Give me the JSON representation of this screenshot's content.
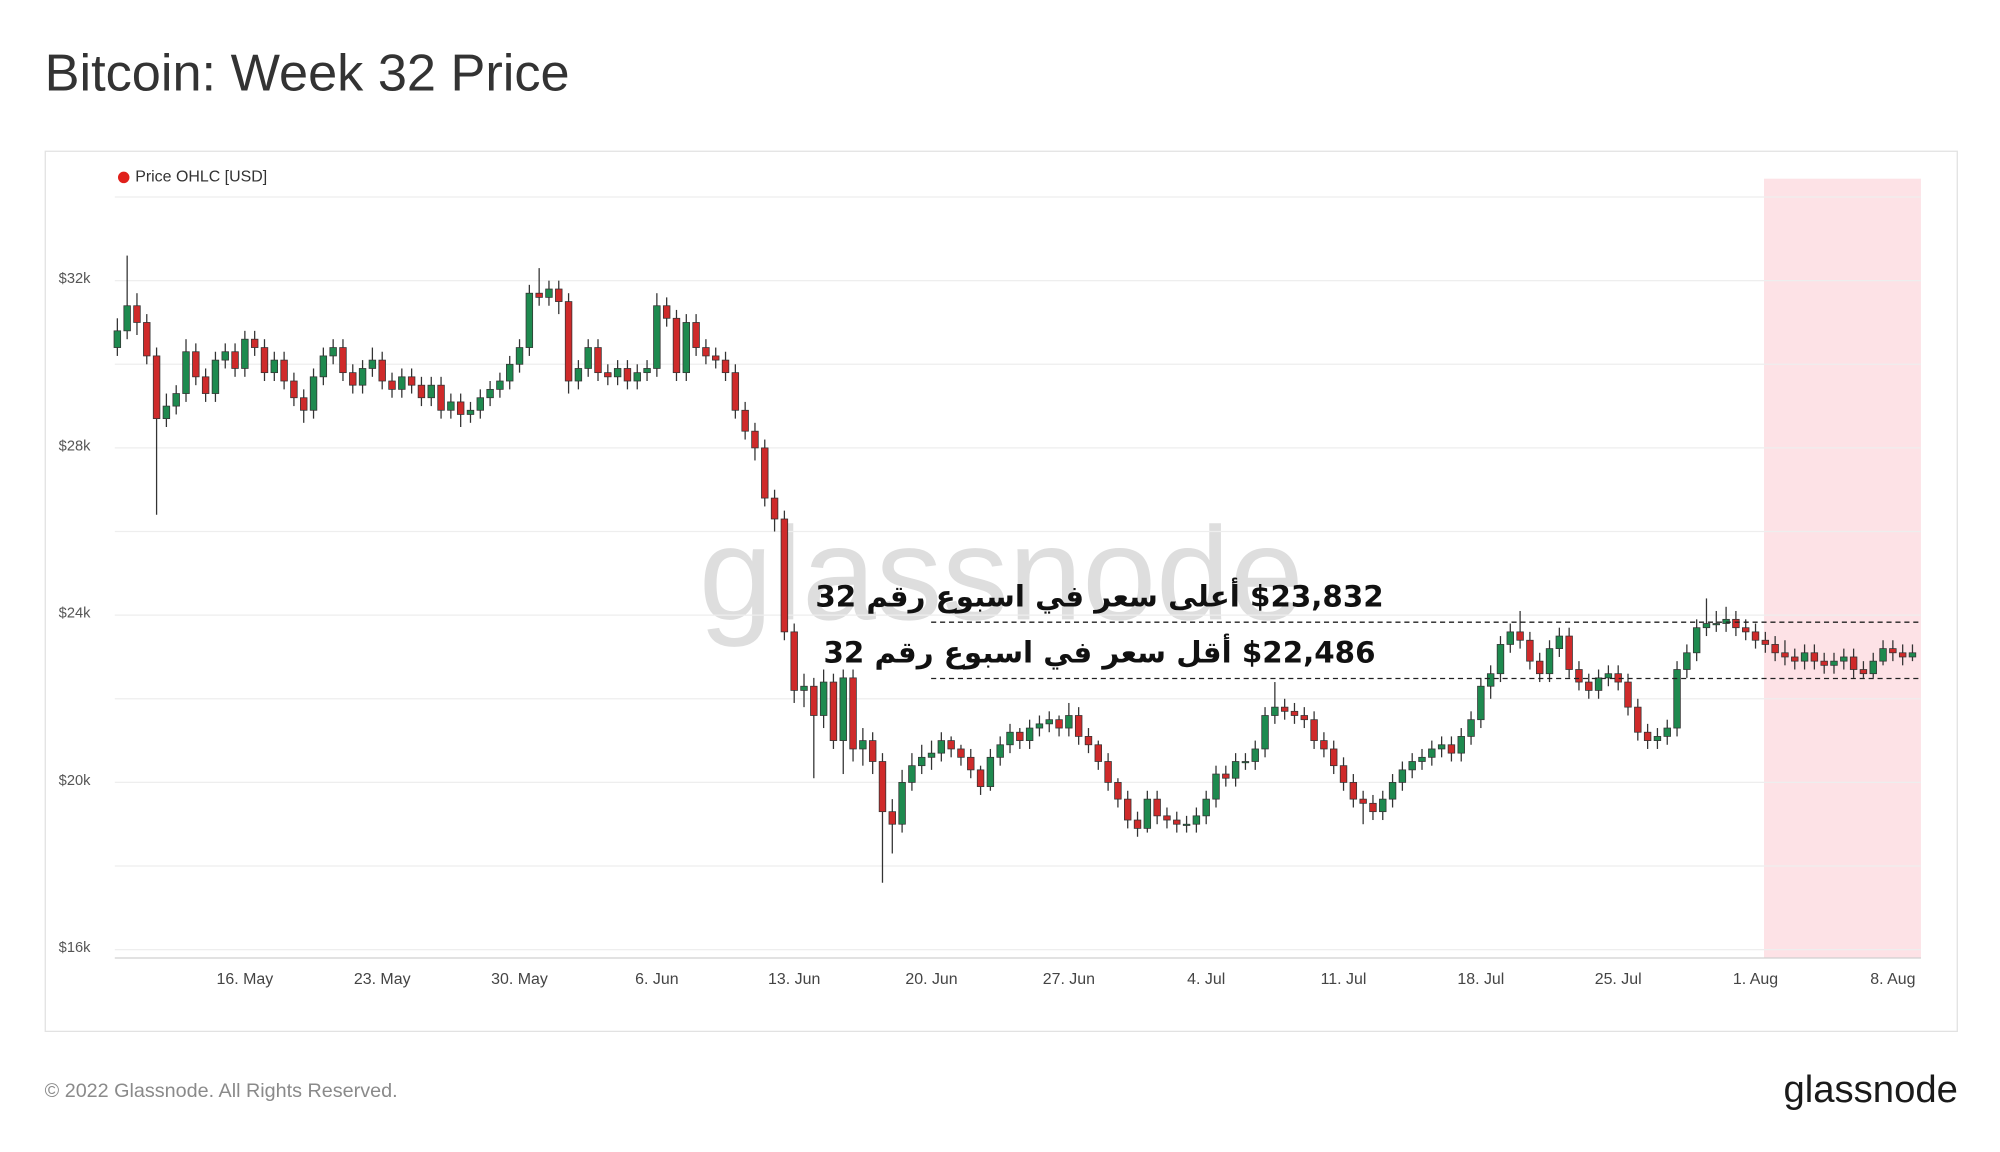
{
  "chart_data": {
    "type": "candlestick",
    "title": "Bitcoin: Week 32 Price",
    "categories": [
      null,
      null,
      null,
      null,
      null,
      null,
      null,
      null,
      null,
      null,
      null,
      null,
      null,
      "16. May",
      null,
      null,
      null,
      null,
      null,
      null,
      null,
      null,
      null,
      null,
      null,
      null,
      null,
      "23. May",
      null,
      null,
      null,
      null,
      null,
      null,
      null,
      null,
      null,
      null,
      null,
      null,
      null,
      "30. May",
      null,
      null,
      null,
      null,
      null,
      null,
      null,
      null,
      null,
      null,
      null,
      null,
      null,
      "6. Jun",
      null,
      null,
      null,
      null,
      null,
      null,
      null,
      null,
      null,
      null,
      null,
      null,
      null,
      "13. Jun",
      null,
      null,
      null,
      null,
      null,
      null,
      null,
      null,
      null,
      null,
      null,
      null,
      null,
      "20. Jun",
      null,
      null,
      null,
      null,
      null,
      null,
      null,
      null,
      null,
      null,
      null,
      null,
      null,
      "27. Jun",
      null,
      null,
      null,
      null,
      null,
      null,
      null,
      null,
      null,
      null,
      null,
      null,
      null,
      "4. Jul",
      null,
      null,
      null,
      null,
      null,
      null,
      null,
      null,
      null,
      null,
      null,
      null,
      null,
      "11. Jul",
      null,
      null,
      null,
      null,
      null,
      null,
      null,
      null,
      null,
      null,
      null,
      null,
      null,
      "18. Jul",
      null,
      null,
      null,
      null,
      null,
      null,
      null,
      null,
      null,
      null,
      null,
      null,
      null,
      "25. Jul",
      null,
      null,
      null,
      null,
      null,
      null,
      null,
      null,
      null,
      null,
      null,
      null,
      null,
      "1. Aug",
      null,
      null,
      null,
      null,
      null,
      null,
      null,
      null,
      null,
      null,
      null,
      null,
      null,
      "8. Aug",
      null,
      null
    ],
    "series": [
      {
        "name": "Price OHLC [USD]",
        "color": "#e0201b",
        "open": [
          30400,
          30800,
          31400,
          31000,
          30200,
          28700,
          29000,
          29300,
          30300,
          29700,
          29300,
          30100,
          30300,
          29900,
          30600,
          30400,
          29800,
          30100,
          29600,
          29200,
          28900,
          29700,
          30200,
          30400,
          29800,
          29500,
          29900,
          30100,
          29600,
          29400,
          29700,
          29500,
          29200,
          29500,
          28900,
          29100,
          28800,
          28900,
          29200,
          29400,
          29600,
          30000,
          30400,
          31700,
          31600,
          31800,
          31500,
          29600,
          29900,
          30400,
          29800,
          29700,
          29900,
          29600,
          29800,
          29900,
          31400,
          31100,
          29800,
          31000,
          30400,
          30200,
          30100,
          29800,
          28900,
          28400,
          28000,
          26800,
          26300,
          23600,
          22200,
          22300,
          21600,
          22400,
          21000,
          22500,
          20800,
          21000,
          20500,
          19300,
          19000,
          20000,
          20400,
          20600,
          20700,
          21000,
          20800,
          20600,
          20300,
          19900,
          20600,
          20900,
          21200,
          21000,
          21300,
          21400,
          21500,
          21300,
          21600,
          21100,
          20900,
          20500,
          20000,
          19600,
          19100,
          18900,
          19600,
          19200,
          19100,
          19000,
          19000,
          19200,
          19600,
          20200,
          20100,
          20500,
          20500,
          20800,
          21600,
          21800,
          21700,
          21600,
          21500,
          21000,
          20800,
          20400,
          20000,
          19600,
          19500,
          19300,
          19600,
          20000,
          20300,
          20500,
          20600,
          20800,
          20900,
          20700,
          21100,
          21500,
          22300,
          22600,
          23300,
          23600,
          23400,
          22900,
          22600,
          23200,
          23500,
          22700,
          22400,
          22200,
          22500,
          22600,
          22400,
          21800,
          21200,
          21000,
          21100,
          21300,
          22700,
          23100,
          23700,
          23800,
          23800,
          23900,
          23700,
          23600,
          23400,
          23300,
          23100,
          23000,
          22900,
          23100,
          22900,
          22800,
          22900,
          23000,
          22700,
          22600,
          22900,
          23200,
          23100,
          23000
        ],
        "high": [
          31100,
          32600,
          31700,
          31200,
          30400,
          29300,
          29500,
          30600,
          30500,
          29900,
          30300,
          30500,
          30500,
          30800,
          30800,
          30600,
          30300,
          30300,
          29800,
          29400,
          29900,
          30400,
          30600,
          30600,
          30000,
          30100,
          30400,
          30300,
          29800,
          29900,
          29900,
          29700,
          29700,
          29700,
          29300,
          29300,
          29100,
          29400,
          29600,
          29800,
          30200,
          30600,
          31900,
          32300,
          32000,
          32000,
          31700,
          30100,
          30600,
          30600,
          30000,
          30100,
          30100,
          30000,
          30100,
          31700,
          31600,
          31300,
          31200,
          31200,
          30600,
          30400,
          30300,
          30000,
          29100,
          28600,
          28200,
          27000,
          26500,
          23800,
          22600,
          22500,
          22700,
          22600,
          22700,
          22700,
          21300,
          21200,
          20700,
          19600,
          20300,
          20700,
          20900,
          21000,
          21200,
          21100,
          20900,
          20800,
          20400,
          20800,
          21100,
          21400,
          21300,
          21500,
          21600,
          21700,
          21600,
          21900,
          21800,
          21300,
          21000,
          20700,
          20100,
          19800,
          19300,
          19800,
          19800,
          19400,
          19300,
          19200,
          19400,
          19800,
          20400,
          20400,
          20700,
          20700,
          21000,
          21800,
          22400,
          22000,
          21900,
          21800,
          21700,
          21200,
          21000,
          20600,
          20200,
          19800,
          19700,
          19800,
          20200,
          20500,
          20700,
          20800,
          21000,
          21100,
          21100,
          21300,
          21700,
          22500,
          22800,
          23500,
          23800,
          24100,
          23600,
          23100,
          23400,
          23700,
          23700,
          22900,
          22600,
          22700,
          22800,
          22800,
          22600,
          22000,
          21400,
          21300,
          21500,
          22900,
          23300,
          23900,
          24400,
          24100,
          24200,
          24100,
          23900,
          23800,
          23600,
          23500,
          23400,
          23200,
          23300,
          23300,
          23100,
          23100,
          23200,
          23200,
          22900,
          23100,
          23400,
          23400,
          23300,
          23300
        ],
        "low": [
          30200,
          30600,
          30700,
          30000,
          26400,
          28500,
          28800,
          29100,
          29500,
          29100,
          29100,
          29900,
          29700,
          29700,
          30200,
          29600,
          29600,
          29400,
          29000,
          28600,
          28700,
          29500,
          30000,
          29600,
          29300,
          29300,
          29700,
          29400,
          29200,
          29200,
          29300,
          29000,
          29000,
          28700,
          28700,
          28500,
          28600,
          28700,
          29000,
          29200,
          29400,
          29800,
          30200,
          31400,
          31400,
          31200,
          29300,
          29400,
          29700,
          29600,
          29500,
          29500,
          29400,
          29400,
          29600,
          29700,
          30900,
          29600,
          29600,
          30200,
          30000,
          29900,
          29600,
          28700,
          28200,
          27700,
          26600,
          26000,
          23400,
          21900,
          21800,
          20100,
          21300,
          20800,
          20200,
          20500,
          20400,
          20200,
          17600,
          18300,
          18800,
          19800,
          20200,
          20300,
          20500,
          20600,
          20400,
          20100,
          19700,
          19800,
          20400,
          20700,
          20800,
          20800,
          21100,
          21200,
          21100,
          21100,
          20900,
          20700,
          20300,
          19800,
          19400,
          18900,
          18700,
          18800,
          19000,
          18900,
          18800,
          18800,
          18800,
          19000,
          19400,
          19900,
          19900,
          20300,
          20300,
          20600,
          21400,
          21500,
          21400,
          21300,
          20800,
          20600,
          20200,
          19800,
          19400,
          19000,
          19100,
          19100,
          19400,
          19800,
          20100,
          20300,
          20400,
          20600,
          20500,
          20500,
          20900,
          21300,
          22000,
          22400,
          23100,
          23200,
          22700,
          22400,
          22400,
          23000,
          22500,
          22200,
          22000,
          22000,
          22300,
          22200,
          21600,
          21000,
          20800,
          20800,
          20900,
          21100,
          22500,
          22900,
          23500,
          23600,
          23600,
          23500,
          23400,
          23200,
          23100,
          22900,
          22800,
          22700,
          22700,
          22700,
          22600,
          22600,
          22700,
          22500,
          22500,
          22500,
          22800,
          22900,
          22800,
          22900
        ],
        "close": [
          30800,
          31400,
          31000,
          30200,
          28700,
          29000,
          29300,
          30300,
          29700,
          29300,
          30100,
          30300,
          29900,
          30600,
          30400,
          29800,
          30100,
          29600,
          29200,
          28900,
          29700,
          30200,
          30400,
          29800,
          29500,
          29900,
          30100,
          29600,
          29400,
          29700,
          29500,
          29200,
          29500,
          28900,
          29100,
          28800,
          28900,
          29200,
          29400,
          29600,
          30000,
          30400,
          31700,
          31600,
          31800,
          31500,
          29600,
          29900,
          30400,
          29800,
          29700,
          29900,
          29600,
          29800,
          29900,
          31400,
          31100,
          29800,
          31000,
          30400,
          30200,
          30100,
          29800,
          28900,
          28400,
          28000,
          26800,
          26300,
          23600,
          22200,
          22300,
          21600,
          22400,
          21000,
          22500,
          20800,
          21000,
          20500,
          19300,
          19000,
          20000,
          20400,
          20600,
          20700,
          21000,
          20800,
          20600,
          20300,
          19900,
          20600,
          20900,
          21200,
          21000,
          21300,
          21400,
          21500,
          21300,
          21600,
          21100,
          20900,
          20500,
          20000,
          19600,
          19100,
          18900,
          19600,
          19200,
          19100,
          19000,
          19000,
          19200,
          19600,
          20200,
          20100,
          20500,
          20500,
          20800,
          21600,
          21800,
          21700,
          21600,
          21500,
          21000,
          20800,
          20400,
          20000,
          19600,
          19500,
          19300,
          19600,
          20000,
          20300,
          20500,
          20600,
          20800,
          20900,
          20700,
          21100,
          21500,
          22300,
          22600,
          23300,
          23600,
          23400,
          22900,
          22600,
          23200,
          23500,
          22700,
          22400,
          22200,
          22500,
          22600,
          22400,
          21800,
          21200,
          21000,
          21100,
          21300,
          22700,
          23100,
          23700,
          23800,
          23800,
          23900,
          23700,
          23600,
          23400,
          23300,
          23100,
          23000,
          22900,
          23100,
          22900,
          22800,
          22900,
          23000,
          22700,
          22600,
          22900,
          23200,
          23100,
          23000,
          23100
        ]
      }
    ],
    "up_color": "#1e8a4f",
    "down_color": "#cf2a2a",
    "ylim": [
      15800,
      34500
    ],
    "yticks": [
      {
        "value": 16000,
        "label": "$16k"
      },
      {
        "value": 20000,
        "label": "$20k"
      },
      {
        "value": 24000,
        "label": "$24k"
      },
      {
        "value": 28000,
        "label": "$28k"
      },
      {
        "value": 32000,
        "label": "$32k"
      }
    ],
    "minor_gridlines": [
      18000,
      22000,
      26000,
      30000,
      34000
    ],
    "grid": true,
    "annotations": [
      {
        "label": "$23,832 أعلى سعر في اسبوع رقم 32",
        "value": 23832
      },
      {
        "label": "$22,486 أقل سعر في اسبوع رقم 32",
        "value": 22486
      }
    ]
  },
  "watermark": "glassnode",
  "footer": {
    "copyright": "© 2022 Glassnode. All Rights Reserved.",
    "logo": "glassnode"
  }
}
